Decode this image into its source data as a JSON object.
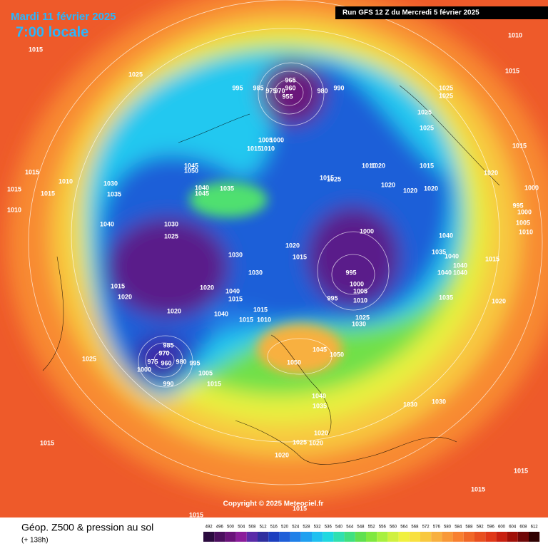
{
  "header": {
    "date": "Mardi 11 février 2025",
    "time": "7:00 locale",
    "run": "Run GFS 12 Z du Mercredi 5 février 2025",
    "copyright": "Copyright © 2025 Meteociel.fr"
  },
  "footer": {
    "title": "Géop. Z500 & pression au sol",
    "lead": "(+ 138h)"
  },
  "colorbar": {
    "ticks": [
      492,
      496,
      500,
      504,
      508,
      512,
      516,
      520,
      524,
      528,
      532,
      536,
      540,
      544,
      548,
      552,
      556,
      560,
      564,
      568,
      572,
      576,
      580,
      584,
      588,
      592,
      596,
      600,
      604,
      608,
      612
    ],
    "colors": [
      "#2b0b3f",
      "#4b0f5e",
      "#6a137a",
      "#8b1d9b",
      "#5a2ba8",
      "#2f2f9f",
      "#1c3fbf",
      "#1f5fd8",
      "#2080e8",
      "#20a0f0",
      "#20c0f0",
      "#20d8e0",
      "#30e0b0",
      "#40e080",
      "#60e050",
      "#80e840",
      "#a8f040",
      "#d0f040",
      "#f0f040",
      "#f8e040",
      "#f8c840",
      "#f8b040",
      "#f89838",
      "#f88030",
      "#f06828",
      "#e85020",
      "#e03818",
      "#c82010",
      "#a01008",
      "#700808",
      "#300000"
    ]
  },
  "pressure_labels": [
    1015,
    1025,
    995,
    985,
    975,
    970,
    965,
    960,
    955,
    980,
    990,
    1010,
    1015,
    1025,
    1025,
    1025,
    1025,
    1005,
    1000,
    1015,
    1010,
    1015,
    1010,
    1030,
    1035,
    1045,
    1050,
    1040,
    1035,
    1045,
    1015,
    1010,
    1015,
    1040,
    1030,
    1025,
    1015,
    1025,
    1010,
    1020,
    1020,
    1020,
    1020,
    1015,
    1020,
    1015,
    1000,
    995,
    1000,
    1005,
    1010,
    1040,
    1035,
    1040,
    1040,
    1040,
    1040,
    1015,
    1000,
    1020,
    1015,
    1030,
    1030,
    995,
    1000,
    1005,
    995,
    1010,
    1025,
    1030,
    1035,
    1020,
    1015,
    1020,
    1020,
    1020,
    1040,
    1015,
    1040,
    1015,
    1015,
    1010,
    985,
    970,
    975,
    960,
    980,
    995,
    1000,
    990,
    1005,
    1015,
    1025,
    1045,
    1050,
    1050,
    1040,
    1035,
    1030,
    1030,
    1020,
    1025,
    1020,
    1020,
    1015,
    1015,
    1015,
    1015,
    1015
  ]
}
